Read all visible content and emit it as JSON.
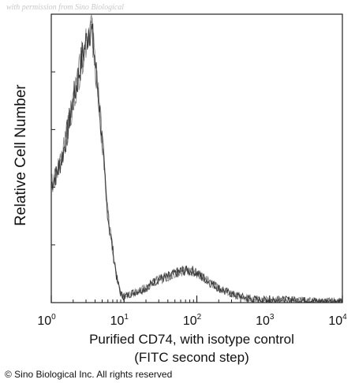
{
  "watermark": "with permission from Sino Biological",
  "copyright": "© Sino Biological Inc. All rights reserved",
  "chart_data": {
    "type": "line",
    "title": "",
    "ylabel": "Relative Cell Number",
    "xlabel_line1": "Purified CD74, with isotype control",
    "xlabel_line2": "(FITC second step)",
    "x_scale": "log",
    "xlim": [
      1,
      10000
    ],
    "ylim": [
      0,
      1
    ],
    "grid": false,
    "x_ticks": [
      {
        "base": "10",
        "exp": "0",
        "value": 1
      },
      {
        "base": "10",
        "exp": "1",
        "value": 10
      },
      {
        "base": "10",
        "exp": "2",
        "value": 100
      },
      {
        "base": "10",
        "exp": "3",
        "value": 1000
      },
      {
        "base": "10",
        "exp": "4",
        "value": 10000
      }
    ],
    "series": [
      {
        "color": "#333333",
        "x": [
          1,
          1.2,
          1.4,
          1.6,
          1.8,
          2,
          2.3,
          2.6,
          3,
          3.3,
          3.6,
          4,
          4.5,
          5,
          5.5,
          6,
          7,
          8,
          9,
          10,
          12,
          15,
          20,
          25,
          30,
          40,
          50,
          60,
          70,
          80,
          90,
          100,
          120,
          150,
          200,
          300,
          500,
          700,
          1000,
          2000,
          5000,
          10000
        ],
        "y": [
          0.41,
          0.45,
          0.5,
          0.57,
          0.64,
          0.7,
          0.77,
          0.84,
          0.9,
          0.96,
          0.94,
          0.84,
          0.7,
          0.56,
          0.42,
          0.3,
          0.18,
          0.08,
          0.03,
          0.02,
          0.03,
          0.04,
          0.05,
          0.07,
          0.08,
          0.09,
          0.1,
          0.11,
          0.11,
          0.11,
          0.11,
          0.1,
          0.09,
          0.07,
          0.05,
          0.03,
          0.015,
          0.01,
          0.01,
          0.01,
          0.005,
          0.005
        ]
      }
    ]
  }
}
